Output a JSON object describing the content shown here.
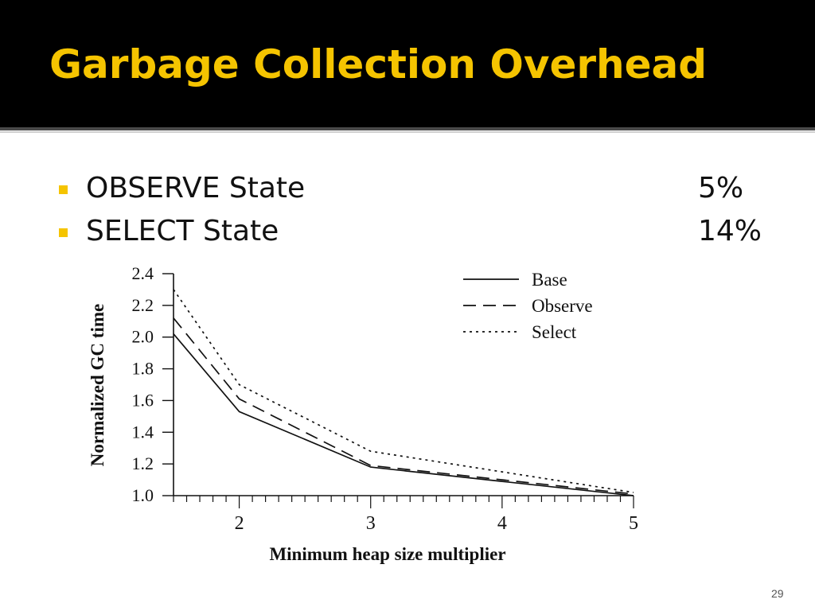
{
  "slide": {
    "title": "Garbage Collection Overhead",
    "bullets": [
      {
        "label": "OBSERVE State",
        "value": "5%"
      },
      {
        "label": "SELECT State",
        "value": "14%"
      }
    ],
    "page_number": "29",
    "colors": {
      "header_bg": "#000000",
      "title": "#f5c400",
      "bullet": "#f5c400"
    }
  },
  "chart_data": {
    "type": "line",
    "title": "",
    "xlabel": "Minimum heap size multiplier",
    "ylabel": "Normalized GC time",
    "xlim": [
      1.5,
      5.0
    ],
    "ylim": [
      1.0,
      2.4
    ],
    "x_ticks": [
      2,
      3,
      4,
      5
    ],
    "x_tick_labels": [
      "2",
      "3",
      "4",
      "5"
    ],
    "y_ticks": [
      1.0,
      1.2,
      1.4,
      1.6,
      1.8,
      2.0,
      2.2,
      2.4
    ],
    "y_tick_labels": [
      "1.0",
      "1.2",
      "1.4",
      "1.6",
      "1.8",
      "2.0",
      "2.2",
      "2.4"
    ],
    "legend_position": "top-right",
    "grid": false,
    "series": [
      {
        "name": "Base",
        "style": "solid",
        "x": [
          1.5,
          2,
          3,
          4,
          5
        ],
        "y": [
          2.02,
          1.53,
          1.18,
          1.09,
          1.0
        ]
      },
      {
        "name": "Observe",
        "style": "dashed",
        "x": [
          1.5,
          2,
          3,
          4,
          5
        ],
        "y": [
          2.12,
          1.61,
          1.19,
          1.1,
          1.01
        ]
      },
      {
        "name": "Select",
        "style": "dotted",
        "x": [
          1.5,
          2,
          3,
          4,
          5
        ],
        "y": [
          2.3,
          1.7,
          1.28,
          1.15,
          1.02
        ]
      }
    ]
  }
}
